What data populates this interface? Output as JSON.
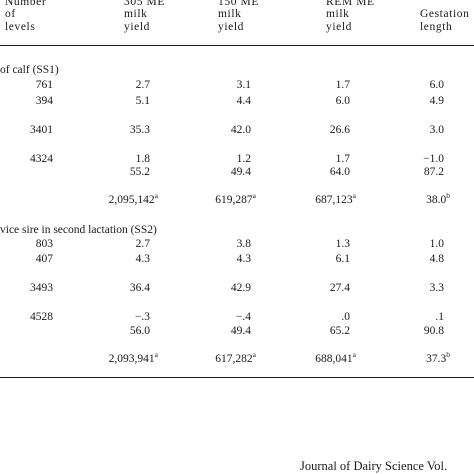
{
  "header": {
    "col1": [
      "Number",
      "of",
      "levels"
    ],
    "col2": [
      "305 ME",
      "milk",
      "yield"
    ],
    "col3": [
      "150 ME",
      "milk",
      "yield"
    ],
    "col4": [
      "REM ME",
      "milk",
      "yield"
    ],
    "col5": [
      "Gestation",
      "length"
    ]
  },
  "section1": {
    "title": "of calf (SS1)",
    "rows": [
      {
        "levels": "761",
        "c305": "2.7",
        "c150": "3.1",
        "rem": "1.7",
        "gest": "6.0"
      },
      {
        "levels": "394",
        "c305": "5.1",
        "c150": "4.4",
        "rem": "6.0",
        "gest": "4.9"
      },
      {
        "levels": "3401",
        "c305": "35.3",
        "c150": "42.0",
        "rem": "26.6",
        "gest": "3.0"
      },
      {
        "levels": "4324",
        "c305": "1.8",
        "c150": "1.2",
        "rem": "1.7",
        "gest": "−1.0"
      },
      {
        "levels": "",
        "c305": "55.2",
        "c150": "49.4",
        "rem": "64.0",
        "gest": "87.2"
      }
    ],
    "totals": {
      "c305": "2,095,142",
      "c150": "619,287",
      "rem": "687,123",
      "gest": "38.0"
    },
    "totals_marks": {
      "c305": "a",
      "c150": "a",
      "rem": "a",
      "gest": "b"
    }
  },
  "section2": {
    "title": "vice sire in second lactation (SS2)",
    "rows": [
      {
        "levels": "803",
        "c305": "2.7",
        "c150": "3.8",
        "rem": "1.3",
        "gest": "1.0"
      },
      {
        "levels": "407",
        "c305": "4.3",
        "c150": "4.3",
        "rem": "6.1",
        "gest": "4.8"
      },
      {
        "levels": "3493",
        "c305": "36.4",
        "c150": "42.9",
        "rem": "27.4",
        "gest": "3.3"
      },
      {
        "levels": "4528",
        "c305": "−.3",
        "c150": "−.4",
        "rem": ".0",
        "gest": ".1"
      },
      {
        "levels": "",
        "c305": "56.0",
        "c150": "49.4",
        "rem": "65.2",
        "gest": "90.8"
      }
    ],
    "totals": {
      "c305": "2,093,941",
      "c150": "617,282",
      "rem": "688,041",
      "gest": "37.3"
    },
    "totals_marks": {
      "c305": "a",
      "c150": "a",
      "rem": "a",
      "gest": "b"
    }
  },
  "footer": {
    "journal": "Journal of Dairy Science Vol."
  }
}
